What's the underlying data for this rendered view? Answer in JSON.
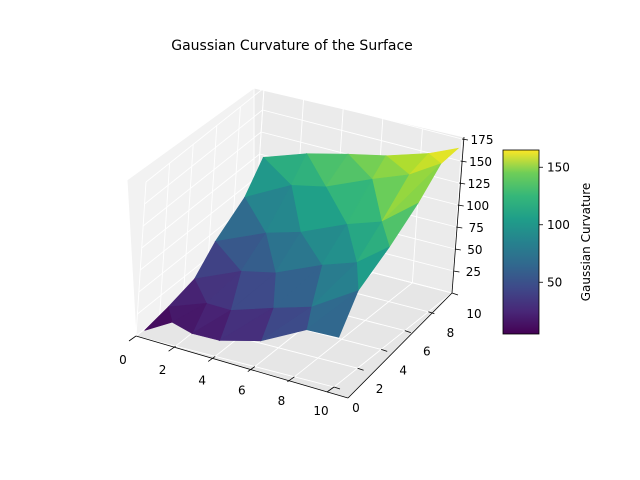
{
  "chart_data": {
    "type": "surface3d",
    "title": "Gaussian Curvature of the Surface",
    "x_ticks": [
      "0",
      "2",
      "4",
      "6",
      "8",
      "10"
    ],
    "y_ticks": [
      "0",
      "2",
      "4",
      "6",
      "8",
      "10"
    ],
    "z_ticks": [
      "25",
      "50",
      "75",
      "100",
      "125",
      "150",
      "175"
    ],
    "xlim": [
      0,
      10
    ],
    "ylim": [
      0,
      10
    ],
    "zlim": [
      0,
      175
    ],
    "colorbar": {
      "label": "Gaussian Curvature",
      "ticks": [
        "50",
        "100",
        "150"
      ],
      "range": [
        5,
        165
      ],
      "colormap": "viridis"
    },
    "surface_points": [
      {
        "x": 0.3,
        "y": 0.2,
        "z": 6
      },
      {
        "x": 1.2,
        "y": 1.0,
        "z": 12
      },
      {
        "x": 2.5,
        "y": 0.5,
        "z": 12
      },
      {
        "x": 4.0,
        "y": 0.3,
        "z": 15
      },
      {
        "x": 6.0,
        "y": 0.4,
        "z": 25
      },
      {
        "x": 8.0,
        "y": 0.8,
        "z": 45
      },
      {
        "x": 9.8,
        "y": 0.5,
        "z": 50
      },
      {
        "x": 0.4,
        "y": 2.0,
        "z": 14
      },
      {
        "x": 2.0,
        "y": 2.5,
        "z": 22
      },
      {
        "x": 3.5,
        "y": 2.0,
        "z": 28
      },
      {
        "x": 5.5,
        "y": 2.2,
        "z": 40
      },
      {
        "x": 7.5,
        "y": 2.0,
        "z": 55
      },
      {
        "x": 9.5,
        "y": 2.5,
        "z": 80
      },
      {
        "x": 0.5,
        "y": 4.0,
        "z": 25
      },
      {
        "x": 2.5,
        "y": 4.5,
        "z": 40
      },
      {
        "x": 4.5,
        "y": 4.0,
        "z": 55
      },
      {
        "x": 6.5,
        "y": 4.5,
        "z": 70
      },
      {
        "x": 8.5,
        "y": 4.0,
        "z": 90
      },
      {
        "x": 9.8,
        "y": 4.5,
        "z": 110
      },
      {
        "x": 0.3,
        "y": 6.0,
        "z": 45
      },
      {
        "x": 2.5,
        "y": 6.5,
        "z": 62
      },
      {
        "x": 4.5,
        "y": 6.0,
        "z": 80
      },
      {
        "x": 6.5,
        "y": 6.5,
        "z": 95
      },
      {
        "x": 8.5,
        "y": 6.0,
        "z": 115
      },
      {
        "x": 9.8,
        "y": 6.8,
        "z": 135
      },
      {
        "x": 0.5,
        "y": 8.0,
        "z": 75
      },
      {
        "x": 2.5,
        "y": 8.5,
        "z": 95
      },
      {
        "x": 4.5,
        "y": 8.0,
        "z": 110
      },
      {
        "x": 6.5,
        "y": 8.5,
        "z": 125
      },
      {
        "x": 8.5,
        "y": 8.2,
        "z": 145
      },
      {
        "x": 9.7,
        "y": 8.8,
        "z": 158
      },
      {
        "x": 0.3,
        "y": 9.8,
        "z": 100
      },
      {
        "x": 2.5,
        "y": 9.7,
        "z": 118
      },
      {
        "x": 4.5,
        "y": 9.8,
        "z": 128
      },
      {
        "x": 6.5,
        "y": 9.6,
        "z": 140
      },
      {
        "x": 8.5,
        "y": 9.8,
        "z": 152
      },
      {
        "x": 9.9,
        "y": 9.9,
        "z": 165
      }
    ]
  }
}
